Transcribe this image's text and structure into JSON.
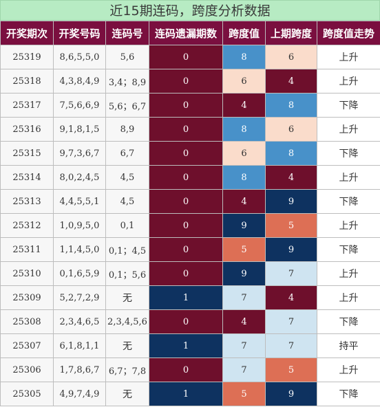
{
  "title": "近15期连码，跨度分析数据",
  "headers": [
    "开奖期次",
    "开奖号码",
    "连码号",
    "连码遗漏期数",
    "跨度值",
    "上期跨度",
    "跨度值走势"
  ],
  "colors": {
    "header_bg": "#7a0f3f",
    "title_bg": "#b7ebc3",
    "maroon": "#6e0f2c",
    "navy": "#0e3260",
    "blue": "#4891c9",
    "peach": "#fadccb",
    "coral": "#dd6f55",
    "light_blue": "#cfe4f1"
  },
  "rows": [
    {
      "issue": "25319",
      "numbers": "8,6,5,5,0",
      "lian": "5,6",
      "omit": "0",
      "omit_color": "maroon",
      "span": "8",
      "span_color": "blue",
      "prev": "6",
      "prev_color": "peach",
      "trend": "上升"
    },
    {
      "issue": "25318",
      "numbers": "4,3,8,4,9",
      "lian": "3,4；8,9",
      "omit": "0",
      "omit_color": "maroon",
      "span": "6",
      "span_color": "peach",
      "prev": "4",
      "prev_color": "maroon",
      "trend": "上升"
    },
    {
      "issue": "25317",
      "numbers": "7,5,6,6,9",
      "lian": "5,6；6,7",
      "omit": "0",
      "omit_color": "maroon",
      "span": "4",
      "span_color": "maroon",
      "prev": "8",
      "prev_color": "blue",
      "trend": "下降"
    },
    {
      "issue": "25316",
      "numbers": "9,1,8,1,5",
      "lian": "8,9",
      "omit": "0",
      "omit_color": "maroon",
      "span": "8",
      "span_color": "blue",
      "prev": "6",
      "prev_color": "peach",
      "trend": "上升"
    },
    {
      "issue": "25315",
      "numbers": "9,7,3,6,7",
      "lian": "6,7",
      "omit": "0",
      "omit_color": "maroon",
      "span": "6",
      "span_color": "peach",
      "prev": "8",
      "prev_color": "blue",
      "trend": "下降"
    },
    {
      "issue": "25314",
      "numbers": "8,0,2,4,5",
      "lian": "4,5",
      "omit": "0",
      "omit_color": "maroon",
      "span": "8",
      "span_color": "blue",
      "prev": "4",
      "prev_color": "maroon",
      "trend": "上升"
    },
    {
      "issue": "25313",
      "numbers": "4,4,5,5,1",
      "lian": "4,5",
      "omit": "0",
      "omit_color": "maroon",
      "span": "4",
      "span_color": "maroon",
      "prev": "9",
      "prev_color": "navy",
      "trend": "下降"
    },
    {
      "issue": "25312",
      "numbers": "1,0,9,5,0",
      "lian": "0,1",
      "omit": "0",
      "omit_color": "maroon",
      "span": "9",
      "span_color": "navy",
      "prev": "5",
      "prev_color": "coral",
      "trend": "上升"
    },
    {
      "issue": "25311",
      "numbers": "1,1,4,5,0",
      "lian": "0,1；4,5",
      "omit": "0",
      "omit_color": "maroon",
      "span": "5",
      "span_color": "coral",
      "prev": "9",
      "prev_color": "navy",
      "trend": "下降"
    },
    {
      "issue": "25310",
      "numbers": "0,1,6,5,9",
      "lian": "0,1；5,6",
      "omit": "0",
      "omit_color": "maroon",
      "span": "9",
      "span_color": "navy",
      "prev": "7",
      "prev_color": "light_blue",
      "trend": "上升"
    },
    {
      "issue": "25309",
      "numbers": "5,2,7,2,9",
      "lian": "无",
      "omit": "1",
      "omit_color": "navy",
      "span": "7",
      "span_color": "light_blue",
      "prev": "4",
      "prev_color": "maroon",
      "trend": "上升"
    },
    {
      "issue": "25308",
      "numbers": "2,3,4,6,5",
      "lian": "2,3,4,5,6",
      "omit": "0",
      "omit_color": "maroon",
      "span": "4",
      "span_color": "maroon",
      "prev": "7",
      "prev_color": "light_blue",
      "trend": "下降"
    },
    {
      "issue": "25307",
      "numbers": "6,1,8,1,1",
      "lian": "无",
      "omit": "1",
      "omit_color": "navy",
      "span": "7",
      "span_color": "light_blue",
      "prev": "7",
      "prev_color": "light_blue",
      "trend": "持平"
    },
    {
      "issue": "25306",
      "numbers": "1,7,8,6,7",
      "lian": "6,7；7,8",
      "omit": "0",
      "omit_color": "maroon",
      "span": "7",
      "span_color": "light_blue",
      "prev": "5",
      "prev_color": "coral",
      "trend": "上升"
    },
    {
      "issue": "25305",
      "numbers": "4,9,7,4,9",
      "lian": "无",
      "omit": "1",
      "omit_color": "navy",
      "span": "5",
      "span_color": "coral",
      "prev": "9",
      "prev_color": "navy",
      "trend": "下降"
    }
  ]
}
